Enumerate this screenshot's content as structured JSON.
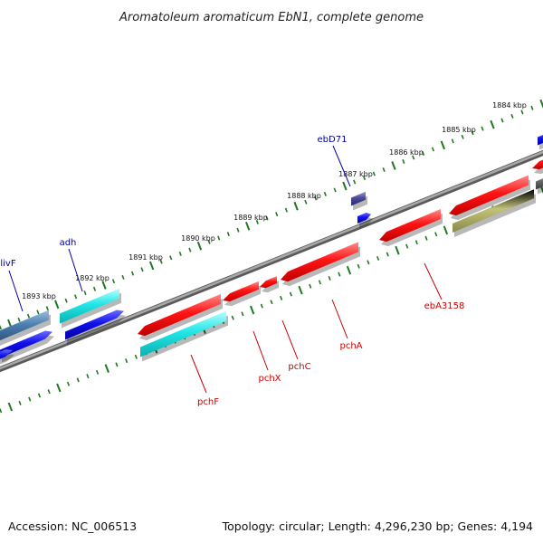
{
  "title": "Aromatoleum aromaticum EbN1, complete genome",
  "colors": {
    "backbone": "#808080",
    "tick": "#1e7a1e",
    "red": "#ee1111",
    "cyan": "#22e4e4",
    "blue": "#1111ee",
    "steel": "#4a7eb0",
    "olive": "#c2c27a",
    "purple": "#4a4a9a",
    "gray": "#6a6a6a",
    "label_red": "#cc0000",
    "label_blue": "#0000aa"
  },
  "scale_labels": [
    "1884 kbp",
    "1885 kbp",
    "1886 kbp",
    "1887 kbp",
    "1888 kbp",
    "1889 kbp",
    "1890 kbp",
    "1891 kbp",
    "1892 kbp",
    "1893 kbp"
  ],
  "gene_labels": {
    "top": [
      "livF",
      "adh",
      "ebD71"
    ],
    "bottom": [
      "pchF",
      "pchX",
      "pchC",
      "pchA",
      "ebA3158"
    ]
  },
  "footer": {
    "accession": "Accession: NC_006513",
    "topology": "Topology: circular; Length: 4,296,230 bp; Genes: 4,194"
  }
}
